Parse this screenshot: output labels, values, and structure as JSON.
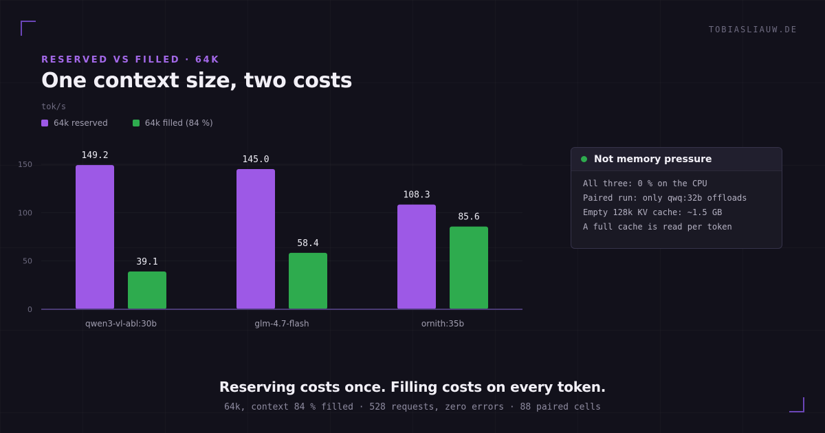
{
  "site": "TOBIASLIAUW.DE",
  "eyebrow": "RESERVED VS FILLED · 64K",
  "title": "One context size, two costs",
  "colors": {
    "reserved": "#9d59e6",
    "filled": "#2eab4e",
    "accent": "#a368e8",
    "status_dot": "#2eab4e"
  },
  "chart_data": {
    "type": "bar",
    "ylabel": "tok/s",
    "categories": [
      "qwen3-vl-abl:30b",
      "glm-4.7-flash",
      "ornith:35b"
    ],
    "series": [
      {
        "name": "64k reserved",
        "values": [
          149.2,
          145.0,
          108.3
        ]
      },
      {
        "name": "64k filled (84 %)",
        "values": [
          39.1,
          58.4,
          85.6
        ]
      }
    ],
    "value_labels": [
      [
        "149.2",
        "145.0",
        "108.3"
      ],
      [
        "39.1",
        "58.4",
        "85.6"
      ]
    ],
    "yticks": [
      0,
      50,
      100,
      150
    ],
    "ylim": [
      0,
      150
    ],
    "grid": true,
    "legend": "top-left"
  },
  "callout": {
    "title": "Not memory pressure",
    "lines": [
      "All three: 0 % on the CPU",
      "Paired run: only qwq:32b offloads",
      "Empty 128k KV cache: ~1.5 GB",
      "A full cache is read per token"
    ]
  },
  "takeaway": "Reserving costs once. Filling costs on every token.",
  "footnote": "64k, context 84 % filled · 528 requests, zero errors · 88 paired cells"
}
